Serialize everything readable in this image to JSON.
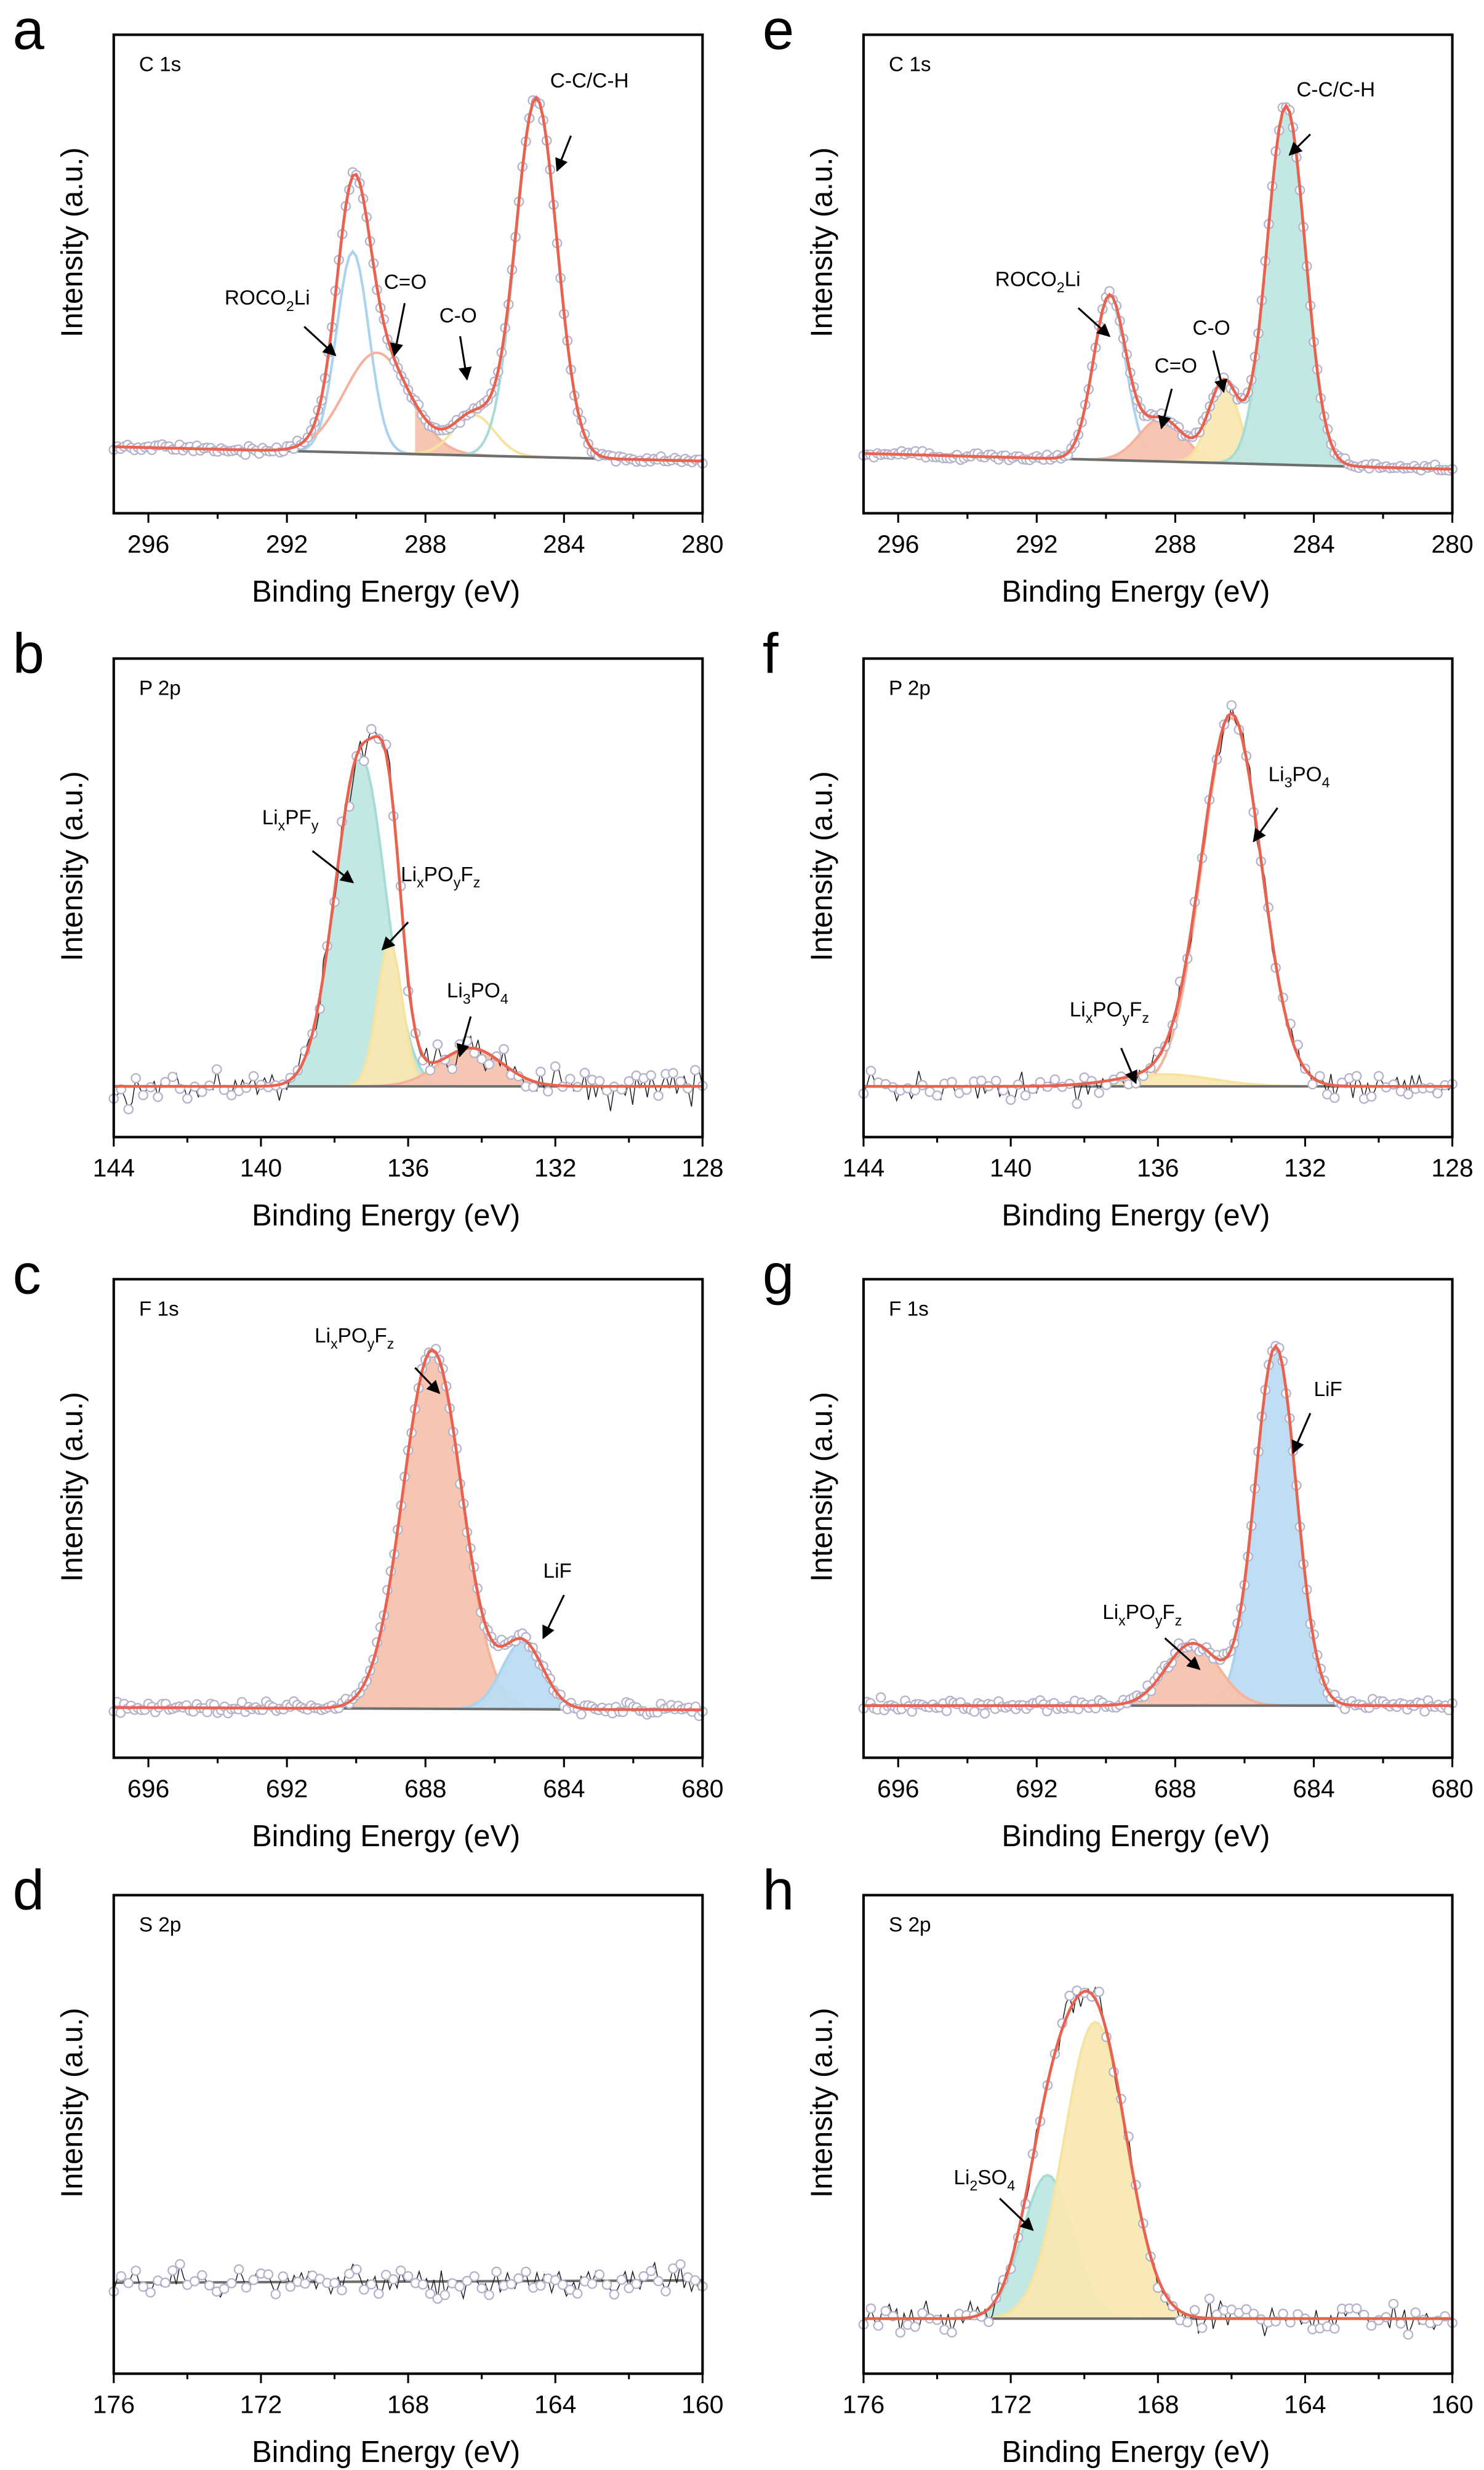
{
  "colors": {
    "envelope": "#e8624f",
    "baseline": "#6e6e6e",
    "points": "#b3b3cc",
    "raw_line": "#222222",
    "blue": "#bcdcf3",
    "teal": "#bfe7e3",
    "salmon": "#f7c3ae",
    "yellow": "#f9e8b2"
  },
  "chart_data": [
    {
      "type": "line",
      "panel": "a",
      "title": "C 1s",
      "xlabel": "Binding Energy (eV)",
      "ylabel": "Intensity (a.u.)",
      "xlim": [
        297,
        280
      ],
      "ylim": [
        0,
        100
      ],
      "xticks": [
        296,
        292,
        288,
        284,
        280
      ],
      "xtick_labels": [
        "296",
        "292",
        "288",
        "284",
        "280"
      ],
      "baseline": [
        13.9,
        10.9
      ],
      "noise": 0.6,
      "envelope": true,
      "peaks": [
        {
          "name": "ROCO2Li",
          "center": 290.1,
          "height": 42,
          "fwhm": 1.1,
          "color": "blue",
          "fill": false
        },
        {
          "name": "C=O",
          "center": 289.4,
          "height": 21,
          "fwhm": 2.2,
          "color": "salmon",
          "fill": false,
          "fill_range": [
            288.3,
            286.5
          ]
        },
        {
          "name": "C-O",
          "center": 286.6,
          "height": 8.5,
          "fwhm": 1.4,
          "color": "yellow",
          "fill": false
        },
        {
          "name": "C-C/C-H",
          "center": 284.8,
          "height": 75,
          "fwhm": 1.4,
          "color": "teal",
          "fill": false
        }
      ],
      "annotations": [
        {
          "label": [
            {
              "t": "C-C/C-H"
            }
          ],
          "text_at": [
            284.4,
            89
          ],
          "arrow_from": [
            283.8,
            78.9
          ],
          "arrow_to": [
            284.2,
            71.6
          ]
        },
        {
          "label": [
            {
              "t": "ROCO"
            },
            {
              "t": "2",
              "sub": true
            },
            {
              "t": "Li"
            }
          ],
          "text_at": [
            293.8,
            43.6
          ],
          "arrow_from": [
            291.5,
            39
          ],
          "arrow_to": [
            290.6,
            33
          ]
        },
        {
          "label": [
            {
              "t": "C=O"
            }
          ],
          "text_at": [
            289.2,
            46.9
          ],
          "arrow_from": [
            288.6,
            43.9
          ],
          "arrow_to": [
            288.9,
            33
          ]
        },
        {
          "label": [
            {
              "t": "C-O"
            }
          ],
          "text_at": [
            287.6,
            39.9
          ],
          "arrow_from": [
            287.0,
            37
          ],
          "arrow_to": [
            286.8,
            28
          ]
        }
      ]
    },
    {
      "type": "line",
      "panel": "b",
      "title": "P 2p",
      "xlabel": "Binding Energy (eV)",
      "ylabel": "Intensity (a.u.)",
      "xlim": [
        144,
        128
      ],
      "ylim": [
        0,
        100
      ],
      "xticks": [
        144,
        140,
        136,
        132,
        128
      ],
      "xtick_labels": [
        "144",
        "140",
        "136",
        "132",
        "128"
      ],
      "baseline": [
        10.6,
        10.6
      ],
      "noise": 2.6,
      "envelope": true,
      "peaks": [
        {
          "name": "LixPFy",
          "center": 137.3,
          "height": 69,
          "fwhm": 1.6,
          "color": "teal",
          "fill": true
        },
        {
          "name": "LixPOyFz",
          "center": 136.5,
          "height": 30,
          "fwhm": 0.8,
          "color": "yellow",
          "fill": true
        },
        {
          "name": "Li3PO4",
          "center": 134.3,
          "height": 8,
          "fwhm": 2.0,
          "color": "salmon",
          "fill": true
        }
      ],
      "annotations": [
        {
          "label": [
            {
              "t": "Li"
            },
            {
              "t": "x",
              "sub": true
            },
            {
              "t": "PF"
            },
            {
              "t": "y",
              "sub": true
            }
          ],
          "text_at": [
            139.97,
            65.4
          ],
          "arrow_from": [
            138.6,
            59.8
          ],
          "arrow_to": [
            137.5,
            53.2
          ]
        },
        {
          "label": [
            {
              "t": "Li"
            },
            {
              "t": "x",
              "sub": true
            },
            {
              "t": "PO"
            },
            {
              "t": "y",
              "sub": true
            },
            {
              "t": "F"
            },
            {
              "t": "z",
              "sub": true
            }
          ],
          "text_at": [
            136.2,
            53.5
          ],
          "arrow_from": [
            136.0,
            44.9
          ],
          "arrow_to": [
            136.7,
            39.2
          ]
        },
        {
          "label": [
            {
              "t": "Li"
            },
            {
              "t": "3",
              "sub": true
            },
            {
              "t": "PO"
            },
            {
              "t": "4",
              "sub": true
            }
          ],
          "text_at": [
            134.95,
            29.2
          ],
          "arrow_from": [
            134.3,
            25.2
          ],
          "arrow_to": [
            134.6,
            16.9
          ]
        }
      ]
    },
    {
      "type": "line",
      "panel": "c",
      "title": "F 1s",
      "xlabel": "Binding Energy (eV)",
      "ylabel": "Intensity (a.u.)",
      "xlim": [
        697,
        680
      ],
      "ylim": [
        0,
        100
      ],
      "xticks": [
        696,
        692,
        688,
        684,
        680
      ],
      "xtick_labels": [
        "696",
        "692",
        "688",
        "684",
        "680"
      ],
      "baseline": [
        10.5,
        10
      ],
      "noise": 0.9,
      "envelope": true,
      "peaks": [
        {
          "name": "LixPOyFz",
          "center": 687.8,
          "height": 75,
          "fwhm": 2.0,
          "color": "salmon",
          "fill": true
        },
        {
          "name": "LiF",
          "center": 685.2,
          "height": 14,
          "fwhm": 1.4,
          "color": "blue",
          "fill": true
        }
      ],
      "annotations": [
        {
          "label": [
            {
              "t": "Li"
            },
            {
              "t": "x",
              "sub": true
            },
            {
              "t": "PO"
            },
            {
              "t": "y",
              "sub": true
            },
            {
              "t": "F"
            },
            {
              "t": "z",
              "sub": true
            }
          ],
          "text_at": [
            691.2,
            86.8
          ],
          "arrow_from": [
            688.3,
            81.5
          ],
          "arrow_to": [
            687.6,
            76.2
          ]
        },
        {
          "label": [
            {
              "t": "LiF"
            }
          ],
          "text_at": [
            684.6,
            37.6
          ],
          "arrow_from": [
            684.0,
            34
          ],
          "arrow_to": [
            684.6,
            25
          ]
        }
      ]
    },
    {
      "type": "line",
      "panel": "d",
      "title": "S 2p",
      "xlabel": "Binding Energy (eV)",
      "ylabel": "Intensity (a.u.)",
      "xlim": [
        176,
        160
      ],
      "ylim": [
        0,
        100
      ],
      "xticks": [
        176,
        172,
        168,
        164,
        160
      ],
      "xtick_labels": [
        "176",
        "172",
        "168",
        "164",
        "160"
      ],
      "baseline": [
        19,
        19.5
      ],
      "noise": 2.2,
      "envelope": false,
      "peaks": [],
      "annotations": []
    },
    {
      "type": "line",
      "panel": "e",
      "title": "C 1s",
      "xlabel": "Binding Energy (eV)",
      "ylabel": "Intensity (a.u.)",
      "xlim": [
        297,
        280
      ],
      "ylim": [
        0,
        100
      ],
      "xticks": [
        296,
        292,
        288,
        284,
        280
      ],
      "xtick_labels": [
        "296",
        "292",
        "288",
        "284",
        "280"
      ],
      "baseline": [
        12.5,
        9.2
      ],
      "noise": 0.6,
      "envelope": true,
      "peaks": [
        {
          "name": "ROCO2Li",
          "center": 289.9,
          "height": 34,
          "fwhm": 1.1,
          "color": "blue",
          "fill": false
        },
        {
          "name": "C=O",
          "center": 288.4,
          "height": 9,
          "fwhm": 1.5,
          "color": "salmon",
          "fill": true
        },
        {
          "name": "C-O",
          "center": 286.6,
          "height": 17,
          "fwhm": 1.0,
          "color": "yellow",
          "fill": true
        },
        {
          "name": "C-C/C-H",
          "center": 284.8,
          "height": 75,
          "fwhm": 1.3,
          "color": "teal",
          "fill": true
        }
      ],
      "annotations": [
        {
          "label": [
            {
              "t": "C-C/C-H"
            }
          ],
          "text_at": [
            284.5,
            87.1
          ],
          "arrow_from": [
            284.1,
            79.2
          ],
          "arrow_to": [
            284.7,
            74.9
          ]
        },
        {
          "label": [
            {
              "t": "ROCO"
            },
            {
              "t": "2",
              "sub": true
            },
            {
              "t": "Li"
            }
          ],
          "text_at": [
            293.2,
            47.5
          ],
          "arrow_from": [
            290.8,
            42.9
          ],
          "arrow_to": [
            289.9,
            37
          ]
        },
        {
          "label": [
            {
              "t": "C=O"
            }
          ],
          "text_at": [
            288.6,
            29.4
          ],
          "arrow_from": [
            288.1,
            26
          ],
          "arrow_to": [
            288.4,
            17.8
          ]
        },
        {
          "label": [
            {
              "t": "C-O"
            }
          ],
          "text_at": [
            287.5,
            37.3
          ],
          "arrow_from": [
            286.9,
            34
          ],
          "arrow_to": [
            286.6,
            25.4
          ]
        }
      ]
    },
    {
      "type": "line",
      "panel": "f",
      "title": "P 2p",
      "xlabel": "Binding Energy (eV)",
      "ylabel": "Intensity (a.u.)",
      "xlim": [
        144,
        128
      ],
      "ylim": [
        0,
        100
      ],
      "xticks": [
        144,
        140,
        136,
        132,
        128
      ],
      "xtick_labels": [
        "144",
        "140",
        "136",
        "132",
        "128"
      ],
      "baseline": [
        10.6,
        10.6
      ],
      "noise": 2.2,
      "envelope": true,
      "peaks": [
        {
          "name": "Li3PO4",
          "center": 134.0,
          "height": 77,
          "fwhm": 1.9,
          "color": "salmon",
          "fill": false
        },
        {
          "name": "LixPOyFz",
          "center": 135.8,
          "height": 2.5,
          "fwhm": 3.0,
          "color": "yellow",
          "fill": true
        }
      ],
      "annotations": [
        {
          "label": [
            {
              "t": "Li"
            },
            {
              "t": "3",
              "sub": true
            },
            {
              "t": "PO"
            },
            {
              "t": "4",
              "sub": true
            }
          ],
          "text_at": [
            133.0,
            74.4
          ],
          "arrow_from": [
            132.75,
            68.8
          ],
          "arrow_to": [
            133.4,
            61.8
          ]
        },
        {
          "label": [
            {
              "t": "Li"
            },
            {
              "t": "x",
              "sub": true
            },
            {
              "t": "PO"
            },
            {
              "t": "y",
              "sub": true
            },
            {
              "t": "F"
            },
            {
              "t": "z",
              "sub": true
            }
          ],
          "text_at": [
            138.4,
            25.2
          ],
          "arrow_from": [
            137.0,
            18.6
          ],
          "arrow_to": [
            136.6,
            11.3
          ]
        }
      ]
    },
    {
      "type": "line",
      "panel": "g",
      "title": "F 1s",
      "xlabel": "Binding Energy (eV)",
      "ylabel": "Intensity (a.u.)",
      "xlim": [
        697,
        680
      ],
      "ylim": [
        0,
        100
      ],
      "xticks": [
        696,
        692,
        688,
        684,
        680
      ],
      "xtick_labels": [
        "696",
        "692",
        "688",
        "684",
        "680"
      ],
      "baseline": [
        10.9,
        10.9
      ],
      "noise": 1.0,
      "envelope": true,
      "peaks": [
        {
          "name": "LiF",
          "center": 685.1,
          "height": 75,
          "fwhm": 1.4,
          "color": "blue",
          "fill": true
        },
        {
          "name": "LixPOyFz",
          "center": 687.5,
          "height": 13,
          "fwhm": 1.8,
          "color": "salmon",
          "fill": true
        }
      ],
      "annotations": [
        {
          "label": [
            {
              "t": "LiF"
            }
          ],
          "text_at": [
            684.0,
            75.6
          ],
          "arrow_from": [
            684.1,
            72
          ],
          "arrow_to": [
            684.6,
            63.7
          ]
        },
        {
          "label": [
            {
              "t": "Li"
            },
            {
              "t": "x",
              "sub": true
            },
            {
              "t": "PO"
            },
            {
              "t": "y",
              "sub": true
            },
            {
              "t": "F"
            },
            {
              "t": "z",
              "sub": true
            }
          ],
          "text_at": [
            690.1,
            29
          ],
          "arrow_from": [
            688.3,
            25
          ],
          "arrow_to": [
            687.3,
            18.5
          ]
        }
      ]
    },
    {
      "type": "line",
      "panel": "h",
      "title": "S 2p",
      "xlabel": "Binding Energy (eV)",
      "ylabel": "Intensity (a.u.)",
      "xlim": [
        176,
        160
      ],
      "ylim": [
        0,
        100
      ],
      "xticks": [
        176,
        172,
        168,
        164,
        160
      ],
      "xtick_labels": [
        "176",
        "172",
        "168",
        "164",
        "160"
      ],
      "baseline": [
        11.5,
        11.5
      ],
      "noise": 2.3,
      "envelope": true,
      "peaks": [
        {
          "name": "Li2SO4",
          "center": 171.0,
          "height": 30,
          "fwhm": 1.6,
          "color": "teal",
          "fill": true
        },
        {
          "name": "S 2p main",
          "center": 169.7,
          "height": 62,
          "fwhm": 2.0,
          "color": "yellow",
          "fill": true
        }
      ],
      "annotations": [
        {
          "label": [
            {
              "t": "Li"
            },
            {
              "t": "2",
              "sub": true
            },
            {
              "t": "SO"
            },
            {
              "t": "4",
              "sub": true
            }
          ],
          "text_at": [
            173.55,
            39.6
          ],
          "arrow_from": [
            172.3,
            36.6
          ],
          "arrow_to": [
            171.4,
            30
          ]
        }
      ]
    }
  ]
}
